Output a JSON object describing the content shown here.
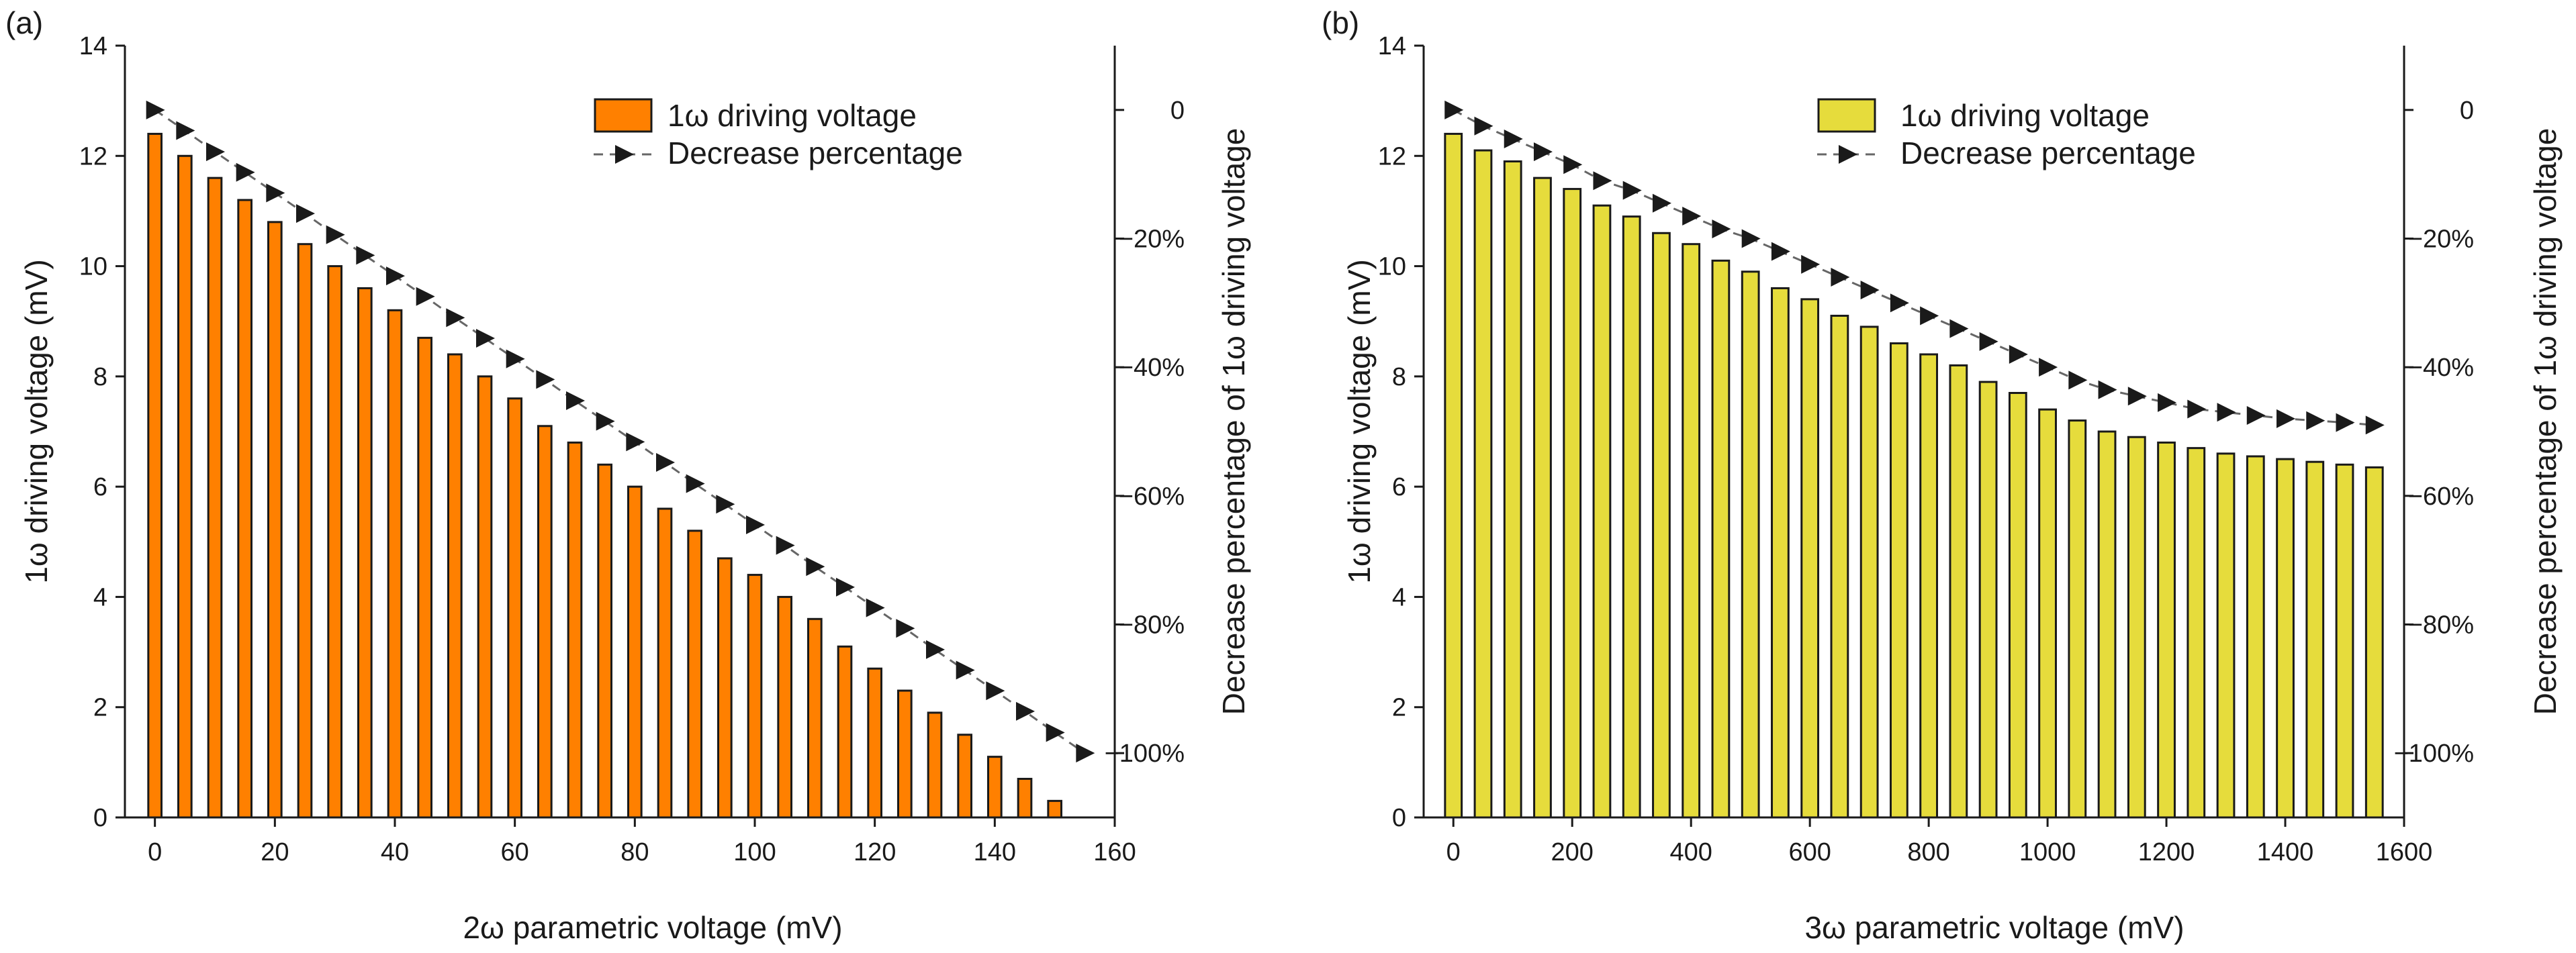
{
  "chart_data": [
    {
      "type": "bar",
      "panel_label": "(a)",
      "title": "",
      "xlabel": "2ω parametric voltage (mV)",
      "ylabel": "1ω  driving voltage (mV)",
      "y2label": "Decrease percentage of 1ω driving voltage",
      "xlim": [
        -5,
        160
      ],
      "ylim": [
        0,
        14
      ],
      "y2lim": [
        -110,
        10
      ],
      "xticks": [
        0,
        20,
        40,
        60,
        80,
        100,
        120,
        140,
        160
      ],
      "yticks": [
        0,
        2,
        4,
        6,
        8,
        10,
        12,
        14
      ],
      "y2ticks": [
        0,
        -20,
        -40,
        -60,
        -80,
        -100
      ],
      "y2tick_labels": [
        "0",
        "−20%",
        "−40%",
        "−60%",
        "−80%",
        "−100%"
      ],
      "bar_color": "#ff8000",
      "bar_width_units": 2.2,
      "legend": {
        "position": "top-right",
        "bar_label": "1ω driving voltage",
        "line_label": "Decrease percentage"
      },
      "x": [
        0,
        5,
        10,
        15,
        20,
        25,
        30,
        35,
        40,
        45,
        50,
        55,
        60,
        65,
        70,
        75,
        80,
        85,
        90,
        95,
        100,
        105,
        110,
        115,
        120,
        125,
        130,
        135,
        140,
        145,
        150
      ],
      "series": [
        {
          "name": "1ω driving voltage",
          "axis": "left",
          "kind": "bar",
          "values": [
            12.4,
            12.0,
            11.6,
            11.2,
            10.8,
            10.4,
            10.0,
            9.6,
            9.2,
            8.7,
            8.4,
            8.0,
            7.6,
            7.1,
            6.8,
            6.4,
            6.0,
            5.6,
            5.2,
            4.7,
            4.4,
            4.0,
            3.6,
            3.1,
            2.7,
            2.3,
            1.9,
            1.5,
            1.1,
            0.7,
            0.3
          ]
        },
        {
          "name": "Decrease percentage",
          "axis": "right",
          "kind": "line",
          "x": [
            0,
            5,
            10,
            15,
            20,
            25,
            30,
            35,
            40,
            45,
            50,
            55,
            60,
            65,
            70,
            75,
            80,
            85,
            90,
            95,
            100,
            105,
            110,
            115,
            120,
            125,
            130,
            135,
            140,
            145,
            150,
            155
          ],
          "values": [
            0,
            -3.2,
            -6.5,
            -9.7,
            -12.9,
            -16.1,
            -19.4,
            -22.6,
            -25.8,
            -29.0,
            -32.3,
            -35.5,
            -38.7,
            -41.9,
            -45.2,
            -48.4,
            -51.6,
            -54.8,
            -58.1,
            -61.3,
            -64.5,
            -67.7,
            -71.0,
            -74.2,
            -77.4,
            -80.6,
            -83.9,
            -87.1,
            -90.3,
            -93.5,
            -96.8,
            -100
          ]
        }
      ]
    },
    {
      "type": "bar",
      "panel_label": "(b)",
      "title": "",
      "xlabel": "3ω parametric voltage (mV)",
      "ylabel": "1ω driving voltage (mV)",
      "y2label": "Decrease percentage of 1ω driving voltage",
      "xlim": [
        -50,
        1600
      ],
      "ylim": [
        0,
        14
      ],
      "y2lim": [
        -110,
        10
      ],
      "xticks": [
        0,
        200,
        400,
        600,
        800,
        1000,
        1200,
        1400,
        1600
      ],
      "yticks": [
        0,
        2,
        4,
        6,
        8,
        10,
        12,
        14
      ],
      "y2ticks": [
        0,
        -20,
        -40,
        -60,
        -80,
        -100
      ],
      "y2tick_labels": [
        "0",
        "−20%",
        "−40%",
        "−60%",
        "−80%",
        "−100%"
      ],
      "bar_color": "#e6dc3c",
      "bar_width_units": 28,
      "legend": {
        "position": "top-right",
        "bar_label": "1ω driving voltage",
        "line_label": "Decrease percentage"
      },
      "x": [
        0,
        50,
        100,
        150,
        200,
        250,
        300,
        350,
        400,
        450,
        500,
        550,
        600,
        650,
        700,
        750,
        800,
        850,
        900,
        950,
        1000,
        1050,
        1100,
        1150,
        1200,
        1250,
        1300,
        1350,
        1400,
        1450,
        1500,
        1550
      ],
      "series": [
        {
          "name": "1ω driving voltage",
          "axis": "left",
          "kind": "bar",
          "values": [
            12.4,
            12.1,
            11.9,
            11.6,
            11.4,
            11.1,
            10.9,
            10.6,
            10.4,
            10.1,
            9.9,
            9.6,
            9.4,
            9.1,
            8.9,
            8.6,
            8.4,
            8.2,
            7.9,
            7.7,
            7.4,
            7.2,
            7.0,
            6.9,
            6.8,
            6.7,
            6.6,
            6.55,
            6.5,
            6.45,
            6.4,
            6.35
          ]
        },
        {
          "name": "Decrease percentage",
          "axis": "right",
          "kind": "line",
          "x": [
            0,
            50,
            100,
            150,
            200,
            250,
            300,
            350,
            400,
            450,
            500,
            550,
            600,
            650,
            700,
            750,
            800,
            850,
            900,
            950,
            1000,
            1050,
            1100,
            1150,
            1200,
            1250,
            1300,
            1350,
            1400,
            1450,
            1500,
            1550
          ],
          "values": [
            0,
            -2.5,
            -4.5,
            -6.5,
            -8.5,
            -11,
            -12.5,
            -14.5,
            -16.5,
            -18.5,
            -20,
            -22,
            -24,
            -26,
            -28,
            -30,
            -32,
            -34,
            -36,
            -38,
            -40,
            -42,
            -43.5,
            -44.5,
            -45.5,
            -46.5,
            -47,
            -47.5,
            -48,
            -48.3,
            -48.6,
            -49
          ]
        }
      ]
    }
  ]
}
